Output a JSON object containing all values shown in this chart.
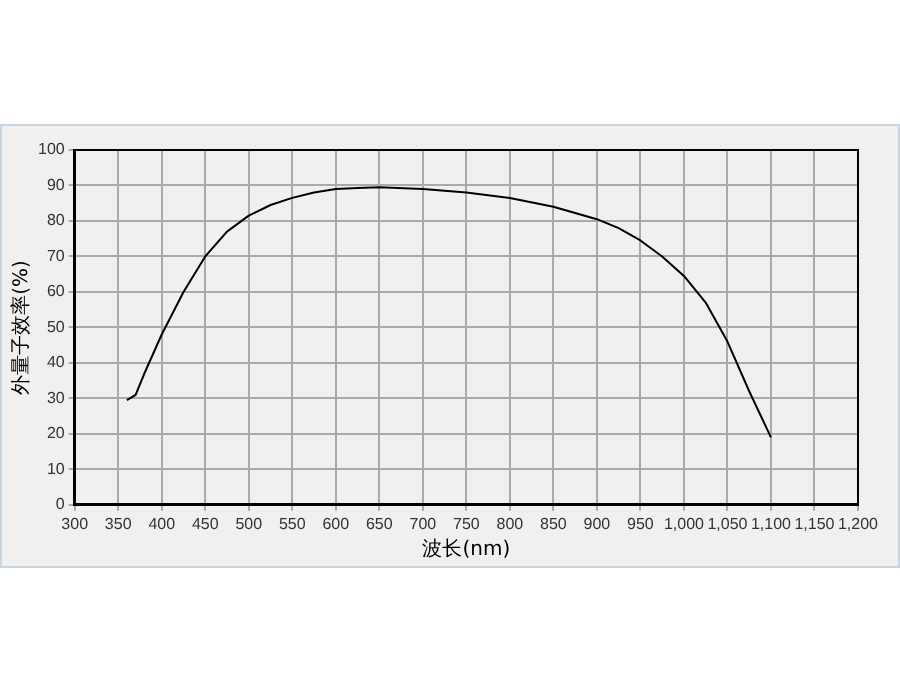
{
  "chart_data": {
    "type": "line",
    "xlabel": "波长(nm)",
    "ylabel": "外量子效率(%)",
    "x": [
      360,
      370,
      380,
      400,
      425,
      450,
      475,
      500,
      525,
      550,
      575,
      600,
      625,
      650,
      700,
      750,
      800,
      850,
      900,
      925,
      950,
      975,
      1000,
      1025,
      1050,
      1075,
      1100
    ],
    "series": [
      {
        "color": "#000000",
        "values": [
          29.5,
          31,
          37,
          48,
          60,
          70,
          77,
          81.5,
          84.5,
          86.5,
          88,
          89,
          89.3,
          89.5,
          89,
          88,
          86.5,
          84,
          80.5,
          78,
          74.5,
          70,
          64.5,
          57,
          46,
          32,
          19
        ]
      }
    ],
    "xlim": [
      300,
      1200
    ],
    "xticks": [
      300,
      350,
      400,
      450,
      500,
      550,
      600,
      650,
      700,
      750,
      800,
      850,
      900,
      950,
      {
        "value": 1000,
        "label": "1,000"
      },
      {
        "value": 1050,
        "label": "1,050"
      },
      {
        "value": 1100,
        "label": "1,100"
      },
      {
        "value": 1150,
        "label": "1,150"
      },
      {
        "value": 1200,
        "label": "1,200"
      }
    ],
    "ylim": [
      0,
      100
    ],
    "yticks": [
      0,
      10,
      20,
      30,
      40,
      50,
      60,
      70,
      80,
      90,
      100
    ],
    "grid": true,
    "marker": "none",
    "line_style": "solid",
    "legend": false
  }
}
